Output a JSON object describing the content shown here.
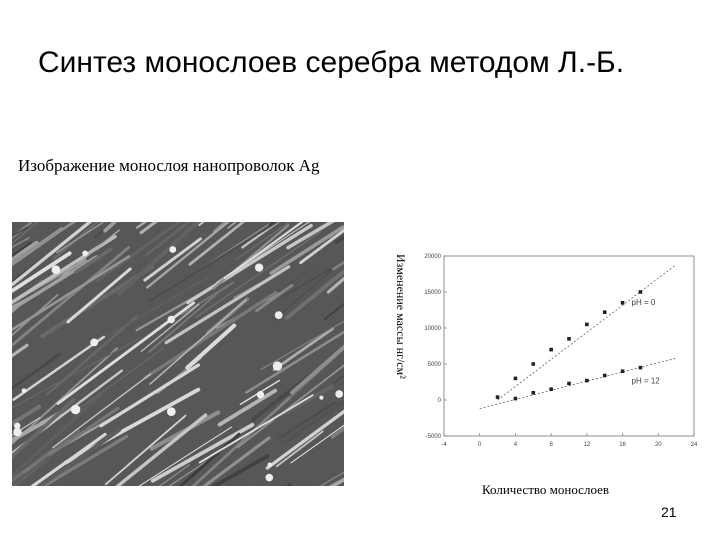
{
  "slide": {
    "title": "Синтез монослоев серебра методом Л.-Б.",
    "subtitle": "Изображение монослоя нанопроволок Ag",
    "page_number": "21",
    "micrograph_icon": "nanowire-micrograph"
  },
  "chart_data": {
    "type": "scatter",
    "xlabel": "Количество монослоев",
    "ylabel": "Изменение массы нг/см²",
    "xlim": [
      -4,
      24
    ],
    "ylim": [
      -5000,
      20000
    ],
    "x_ticks": [
      "-4",
      "0",
      "4",
      "8",
      "12",
      "16",
      "20",
      "24"
    ],
    "y_ticks": [
      "-5000",
      "0",
      "5000",
      "10000",
      "15000",
      "20000"
    ],
    "grid": false,
    "series": [
      {
        "name": "pH = 0",
        "points": [
          [
            2,
            400
          ],
          [
            4,
            3000
          ],
          [
            6,
            5000
          ],
          [
            8,
            7000
          ],
          [
            10,
            8500
          ],
          [
            12,
            10500
          ],
          [
            14,
            12200
          ],
          [
            16,
            13500
          ],
          [
            18,
            15000
          ]
        ],
        "fit": [
          [
            2,
            0
          ],
          [
            22,
            18800
          ]
        ]
      },
      {
        "name": "pH = 12",
        "points": [
          [
            4,
            200
          ],
          [
            6,
            1000
          ],
          [
            8,
            1500
          ],
          [
            10,
            2300
          ],
          [
            12,
            2700
          ],
          [
            14,
            3400
          ],
          [
            16,
            4000
          ],
          [
            18,
            4500
          ]
        ],
        "fit": [
          [
            0,
            -1200
          ],
          [
            22,
            5800
          ]
        ]
      }
    ]
  }
}
